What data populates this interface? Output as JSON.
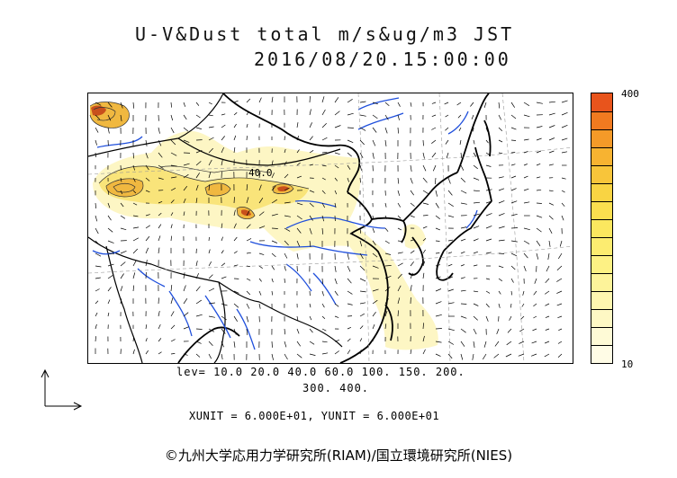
{
  "title": {
    "line1": "U-V&Dust total m/s&ug/m3 JST",
    "line2": "2016/08/20.15:00:00"
  },
  "colorbar": {
    "max_label": "400",
    "min_label": "10",
    "colors": [
      "#e8541c",
      "#f07a20",
      "#f49a28",
      "#f7b331",
      "#f8c53a",
      "#f9d443",
      "#fadf4f",
      "#fbe75f",
      "#fcec70",
      "#fdf184",
      "#fdf39a",
      "#fef6b0",
      "#fef8c4",
      "#fefad6",
      "#fffce6"
    ]
  },
  "levels": {
    "line1": "lev= 10.0 20.0 40.0 60.0 100. 150. 200.",
    "line2": "300. 400."
  },
  "units": {
    "text": "XUNIT = 6.000E+01, YUNIT = 6.000E+01"
  },
  "map": {
    "contour_label": "40.0",
    "colors": {
      "coast": "#000000",
      "river": "#1f4fdc",
      "border": "#000000",
      "dust_light": "#fdf6c4",
      "dust_mid": "#f9e47a",
      "dust_high": "#f0b840",
      "dust_peak": "#c8501c",
      "grid": "#999999"
    }
  },
  "copyright": "©九州大学応用力学研究所(RIAM)/国立環境研究所(NIES)"
}
